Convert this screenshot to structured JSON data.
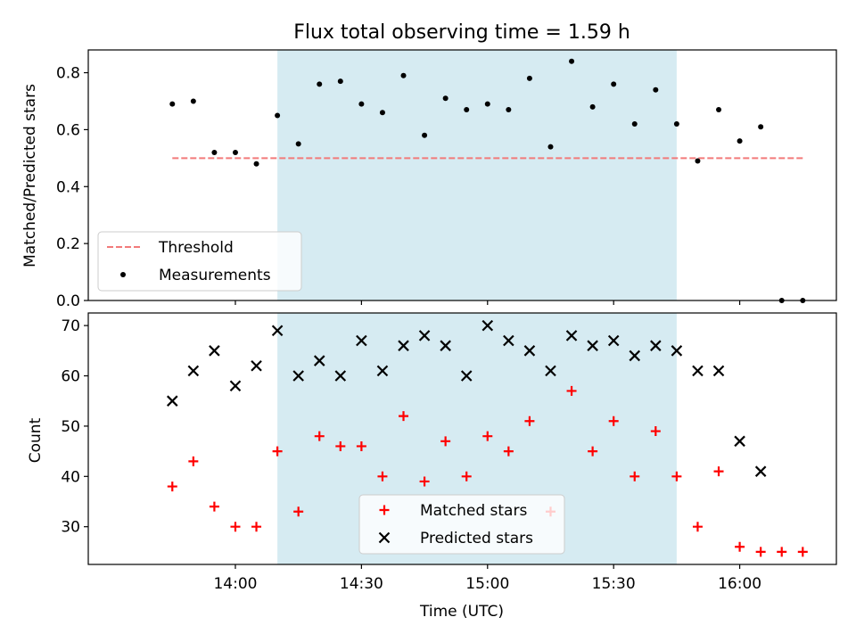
{
  "chart_data": [
    {
      "type": "scatter",
      "title": "Flux total observing time = 1.59 h",
      "ylabel": "Matched/Predicted stars",
      "ylim": [
        0,
        0.88
      ],
      "yticks": [
        "0.0",
        "0.2",
        "0.4",
        "0.6",
        "0.8"
      ],
      "xlim": [
        "13:25",
        "16:23"
      ],
      "shaded_interval": [
        "14:10",
        "15:45"
      ],
      "shade_color": "#add8e6",
      "legend_position": "lower-left",
      "series": [
        {
          "name": "Threshold",
          "kind": "dashed-line",
          "color": "#f27a7a",
          "x": [
            "13:45",
            "16:15"
          ],
          "y": [
            0.5,
            0.5
          ]
        },
        {
          "name": "Measurements",
          "kind": "dot",
          "color": "#000000",
          "x": [
            "13:45",
            "13:50",
            "13:55",
            "14:00",
            "14:05",
            "14:10",
            "14:15",
            "14:20",
            "14:25",
            "14:30",
            "14:35",
            "14:40",
            "14:45",
            "14:50",
            "14:55",
            "15:00",
            "15:05",
            "15:10",
            "15:15",
            "15:20",
            "15:25",
            "15:30",
            "15:35",
            "15:40",
            "15:45",
            "15:50",
            "15:55",
            "16:00",
            "16:05",
            "16:10",
            "16:15"
          ],
          "y": [
            0.69,
            0.7,
            0.52,
            0.52,
            0.48,
            0.65,
            0.55,
            0.76,
            0.77,
            0.69,
            0.66,
            0.79,
            0.58,
            0.71,
            0.67,
            0.69,
            0.67,
            0.78,
            0.54,
            0.84,
            0.68,
            0.76,
            0.62,
            0.74,
            0.62,
            0.49,
            0.67,
            0.56,
            0.61,
            0.0,
            0.0
          ]
        }
      ]
    },
    {
      "type": "scatter",
      "ylabel": "Count",
      "xlabel": "Time (UTC)",
      "ylim": [
        22.5,
        72.5
      ],
      "yticks": [
        "30",
        "40",
        "50",
        "60",
        "70"
      ],
      "xlim": [
        "13:25",
        "16:23"
      ],
      "xticks": [
        "14:00",
        "14:30",
        "15:00",
        "15:30",
        "16:00"
      ],
      "shaded_interval": [
        "14:10",
        "15:45"
      ],
      "shade_color": "#add8e6",
      "legend_position": "lower-center",
      "series": [
        {
          "name": "Matched stars",
          "kind": "plus",
          "color": "#ff0000",
          "x": [
            "13:45",
            "13:50",
            "13:55",
            "14:00",
            "14:05",
            "14:10",
            "14:15",
            "14:20",
            "14:25",
            "14:30",
            "14:35",
            "14:40",
            "14:45",
            "14:50",
            "14:55",
            "15:00",
            "15:05",
            "15:10",
            "15:15",
            "15:20",
            "15:25",
            "15:30",
            "15:35",
            "15:40",
            "15:45",
            "15:50",
            "15:55",
            "16:00",
            "16:05",
            "16:10",
            "16:15"
          ],
          "y": [
            38,
            43,
            34,
            30,
            30,
            45,
            33,
            48,
            46,
            46,
            40,
            52,
            39,
            47,
            40,
            48,
            45,
            51,
            33,
            57,
            45,
            51,
            40,
            49,
            40,
            30,
            41,
            26,
            25,
            25,
            25
          ]
        },
        {
          "name": "Predicted stars",
          "kind": "cross",
          "color": "#000000",
          "x": [
            "13:45",
            "13:50",
            "13:55",
            "14:00",
            "14:05",
            "14:10",
            "14:15",
            "14:20",
            "14:25",
            "14:30",
            "14:35",
            "14:40",
            "14:45",
            "14:50",
            "14:55",
            "15:00",
            "15:05",
            "15:10",
            "15:15",
            "15:20",
            "15:25",
            "15:30",
            "15:35",
            "15:40",
            "15:45",
            "15:50",
            "15:55",
            "16:00",
            "16:05"
          ],
          "y": [
            55,
            61,
            65,
            58,
            62,
            69,
            60,
            63,
            60,
            67,
            61,
            66,
            68,
            66,
            60,
            70,
            67,
            65,
            61,
            68,
            66,
            67,
            64,
            66,
            65,
            61,
            61,
            47,
            41
          ]
        }
      ]
    }
  ]
}
